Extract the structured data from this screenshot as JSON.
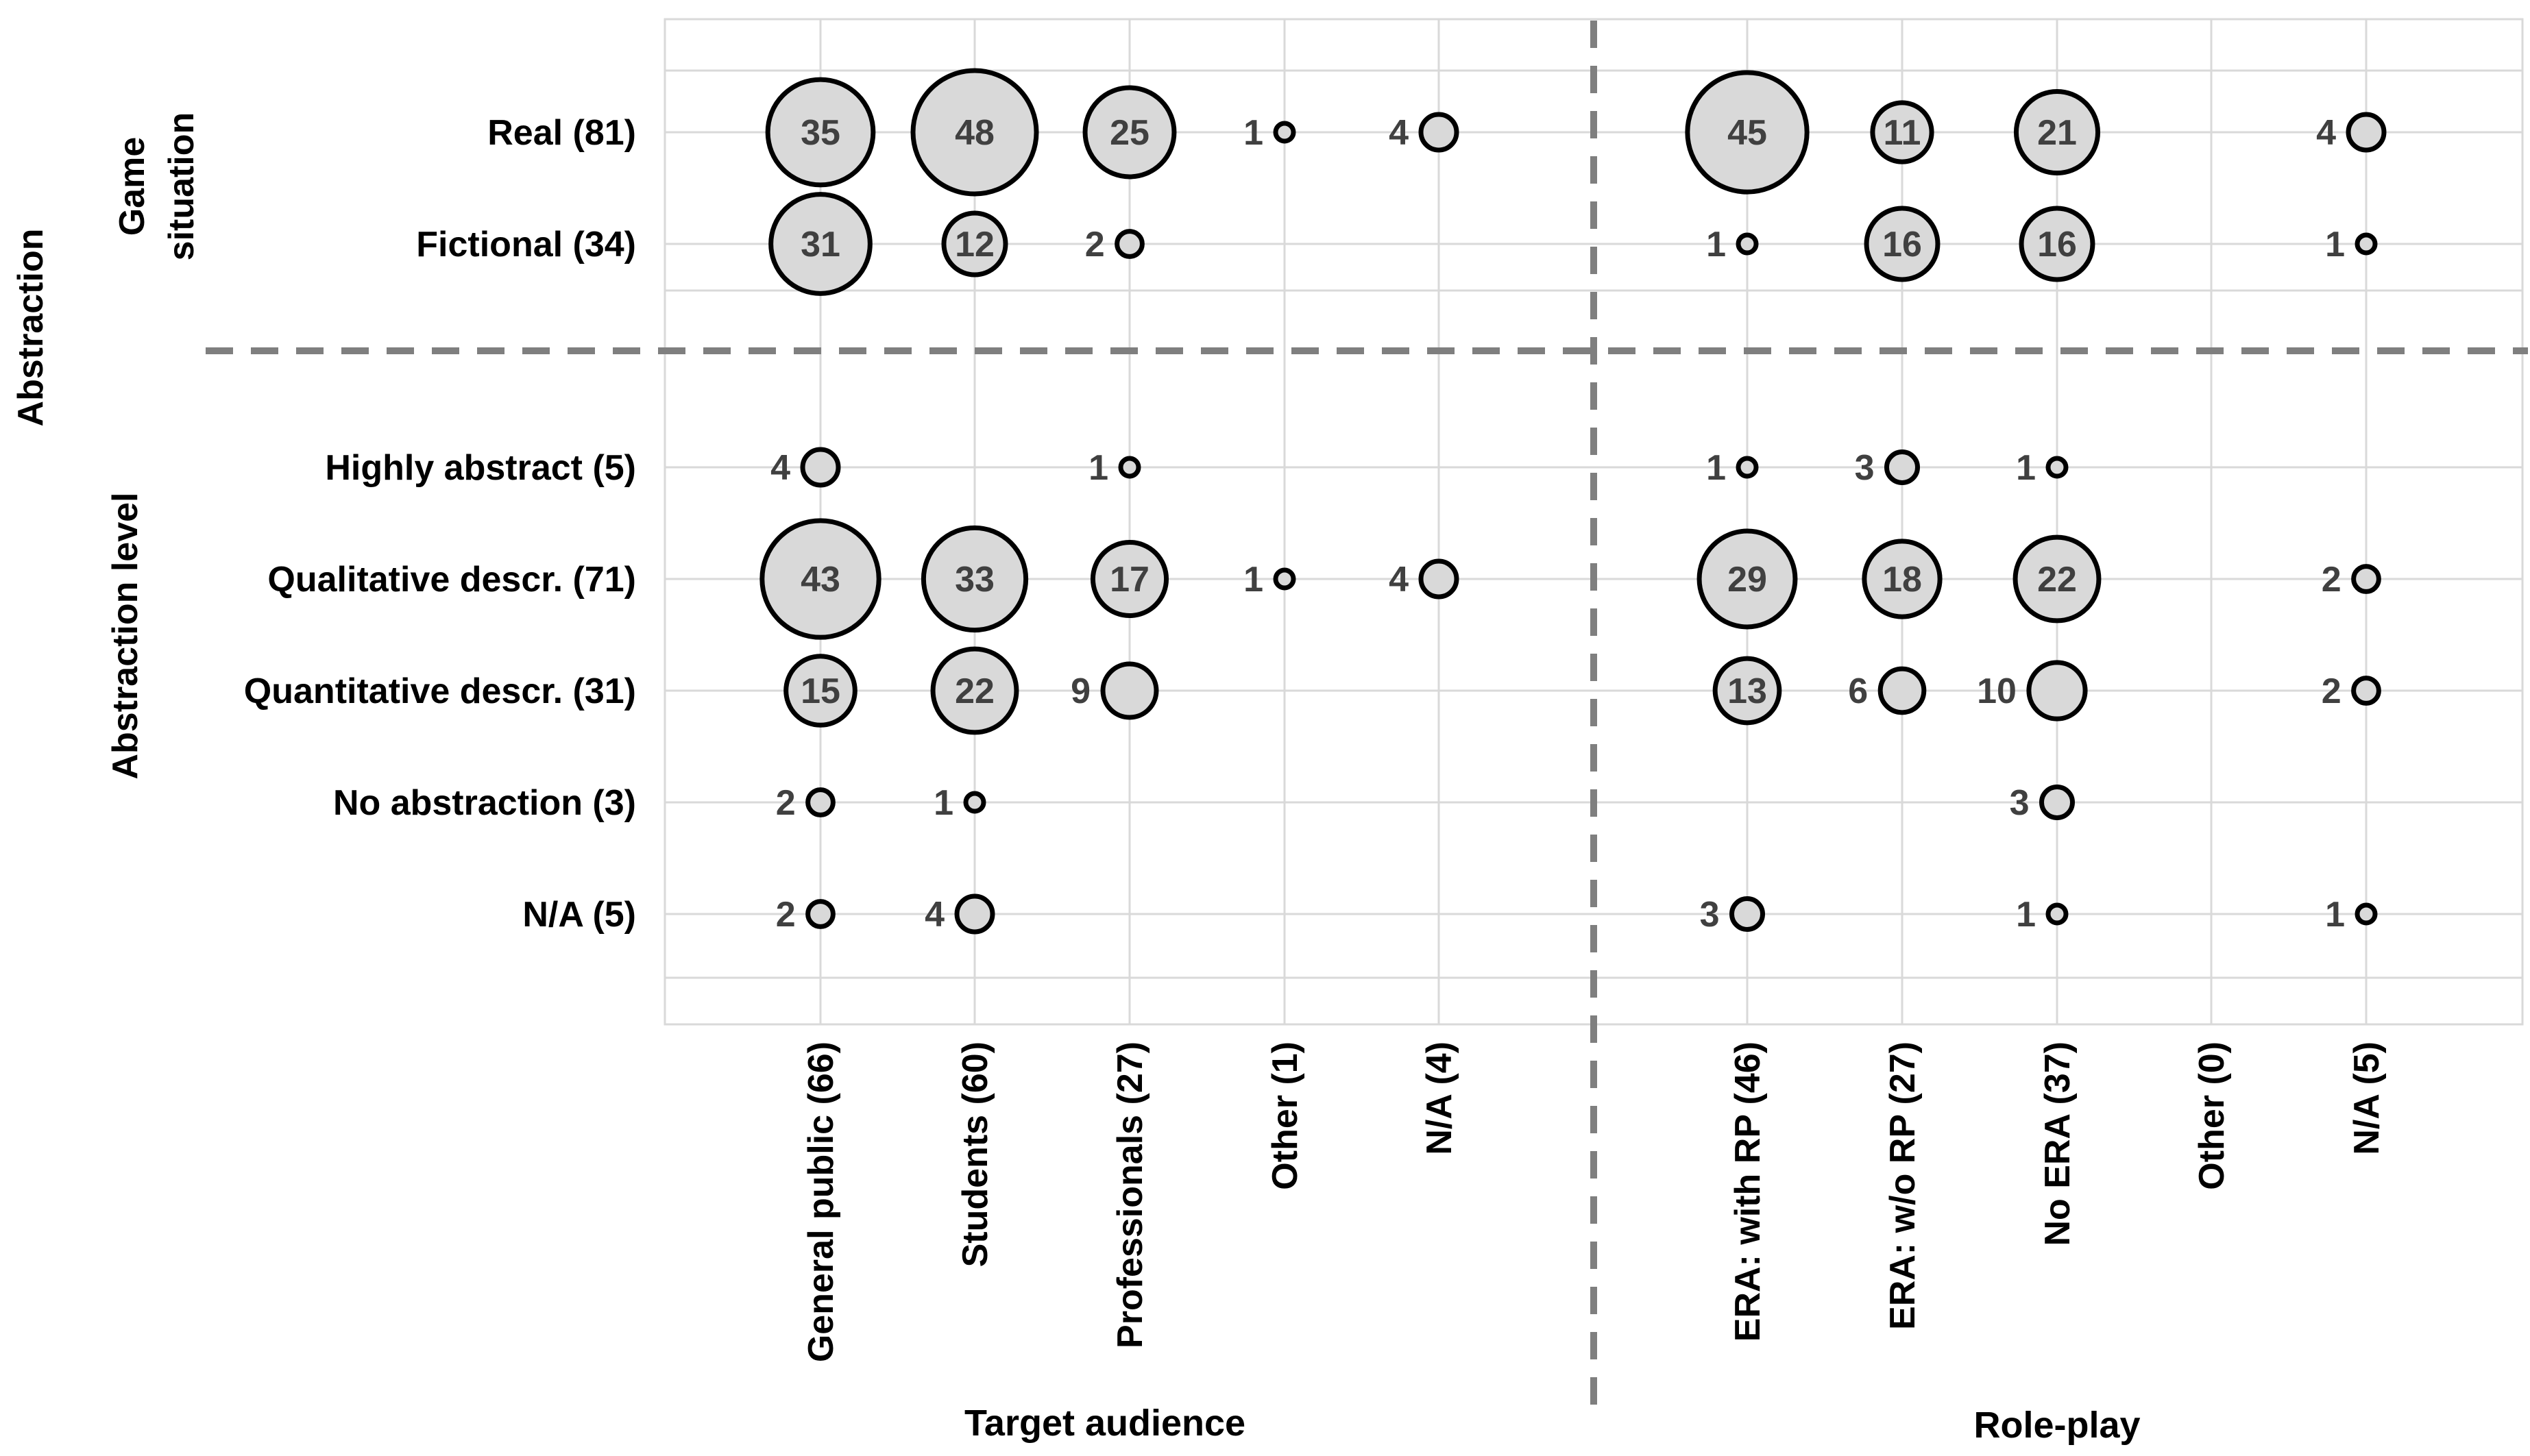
{
  "chart_data": {
    "type": "bubble-matrix",
    "row_groups": [
      {
        "label": "Game situation",
        "rows": [
          "Real (81)",
          "Fictional (34)"
        ]
      },
      {
        "label": "Abstraction level",
        "rows": [
          "Highly abstract (5)",
          "Qualitative descr. (71)",
          "Quantitative descr. (31)",
          "No abstraction (3)",
          "N/A (5)"
        ]
      }
    ],
    "outer_row_label": "Abstraction",
    "rows": [
      "Real (81)",
      "Fictional (34)",
      "Highly abstract (5)",
      "Qualitative descr. (71)",
      "Quantitative descr. (31)",
      "No abstraction (3)",
      "N/A (5)"
    ],
    "column_groups": [
      {
        "label": "Target audience",
        "columns": [
          "General public (66)",
          "Students (60)",
          "Professionals (27)",
          "Other (1)",
          "N/A (4)"
        ]
      },
      {
        "label": "Role-play",
        "columns": [
          "ERA: with RP (46)",
          "ERA: w/o RP (27)",
          "No ERA (37)",
          "Other (0)",
          "N/A (5)"
        ]
      }
    ],
    "cells": [
      {
        "row": 0,
        "col": 0,
        "value": 35
      },
      {
        "row": 0,
        "col": 1,
        "value": 48
      },
      {
        "row": 0,
        "col": 2,
        "value": 25
      },
      {
        "row": 0,
        "col": 3,
        "value": 1
      },
      {
        "row": 0,
        "col": 4,
        "value": 4
      },
      {
        "row": 0,
        "col": 5,
        "value": 45
      },
      {
        "row": 0,
        "col": 6,
        "value": 11
      },
      {
        "row": 0,
        "col": 7,
        "value": 21
      },
      {
        "row": 0,
        "col": 9,
        "value": 4
      },
      {
        "row": 1,
        "col": 0,
        "value": 31
      },
      {
        "row": 1,
        "col": 1,
        "value": 12
      },
      {
        "row": 1,
        "col": 2,
        "value": 2
      },
      {
        "row": 1,
        "col": 5,
        "value": 1
      },
      {
        "row": 1,
        "col": 6,
        "value": 16
      },
      {
        "row": 1,
        "col": 7,
        "value": 16
      },
      {
        "row": 1,
        "col": 9,
        "value": 1
      },
      {
        "row": 2,
        "col": 0,
        "value": 4
      },
      {
        "row": 2,
        "col": 2,
        "value": 1
      },
      {
        "row": 2,
        "col": 5,
        "value": 1
      },
      {
        "row": 2,
        "col": 6,
        "value": 3
      },
      {
        "row": 2,
        "col": 7,
        "value": 1
      },
      {
        "row": 3,
        "col": 0,
        "value": 43
      },
      {
        "row": 3,
        "col": 1,
        "value": 33
      },
      {
        "row": 3,
        "col": 2,
        "value": 17
      },
      {
        "row": 3,
        "col": 3,
        "value": 1
      },
      {
        "row": 3,
        "col": 4,
        "value": 4
      },
      {
        "row": 3,
        "col": 5,
        "value": 29
      },
      {
        "row": 3,
        "col": 6,
        "value": 18
      },
      {
        "row": 3,
        "col": 7,
        "value": 22
      },
      {
        "row": 3,
        "col": 9,
        "value": 2
      },
      {
        "row": 4,
        "col": 0,
        "value": 15
      },
      {
        "row": 4,
        "col": 1,
        "value": 22
      },
      {
        "row": 4,
        "col": 2,
        "value": 9
      },
      {
        "row": 4,
        "col": 5,
        "value": 13
      },
      {
        "row": 4,
        "col": 6,
        "value": 6
      },
      {
        "row": 4,
        "col": 7,
        "value": 10
      },
      {
        "row": 4,
        "col": 9,
        "value": 2
      },
      {
        "row": 5,
        "col": 0,
        "value": 2
      },
      {
        "row": 5,
        "col": 1,
        "value": 1
      },
      {
        "row": 5,
        "col": 7,
        "value": 3
      },
      {
        "row": 6,
        "col": 0,
        "value": 2
      },
      {
        "row": 6,
        "col": 1,
        "value": 4
      },
      {
        "row": 6,
        "col": 5,
        "value": 3
      },
      {
        "row": 6,
        "col": 7,
        "value": 1
      },
      {
        "row": 6,
        "col": 9,
        "value": 1
      }
    ],
    "label_inside_min_value": 11
  }
}
